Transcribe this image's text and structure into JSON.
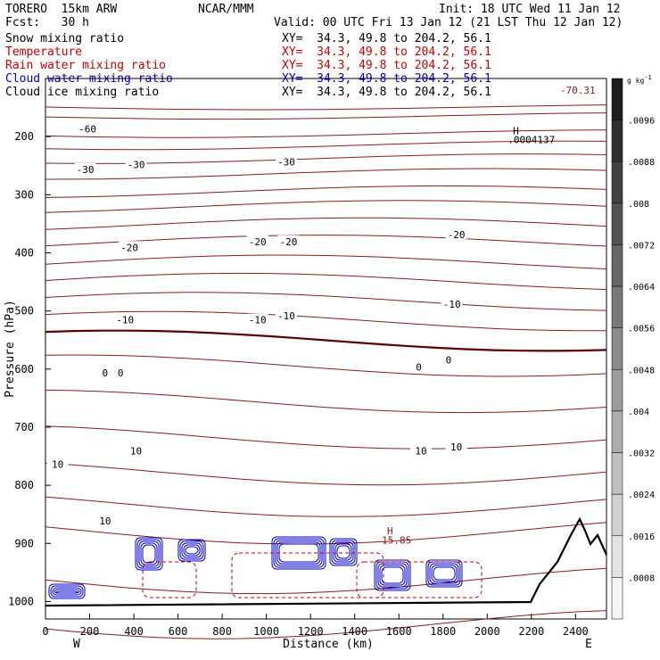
{
  "header": {
    "model": "TORERO  15km ARW",
    "center": "NCAR/MMM",
    "init": "Init: 18 UTC Wed 11 Jan 12",
    "fcst": "Fcst:   30 h",
    "valid": "Valid: 00 UTC Fri 13 Jan 12 (21 LST Thu 12 Jan 12)"
  },
  "fields": [
    {
      "name": "Snow mixing ratio",
      "xy": "XY=  34.3, 49.8 to 204.2, 56.1",
      "color": "#000000"
    },
    {
      "name": "Temperature",
      "xy": "XY=  34.3, 49.8 to 204.2, 56.1",
      "color": "#cc0000"
    },
    {
      "name": "Rain water mixing ratio",
      "xy": "XY=  34.3, 49.8 to 204.2, 56.1",
      "color": "#cc0000"
    },
    {
      "name": "Cloud water mixing ratio",
      "xy": "XY=  34.3, 49.8 to 204.2, 56.1",
      "color": "#0000cc"
    },
    {
      "name": "Cloud ice mixing ratio",
      "xy": "XY=  34.3, 49.8 to 204.2, 56.1",
      "color": "#000000"
    }
  ],
  "chart_data": {
    "type": "contour",
    "xlabel": "Distance (km)",
    "ylabel": "Pressure (hPa)",
    "x_ticks": [
      0,
      200,
      400,
      600,
      800,
      1000,
      1200,
      1400,
      1600,
      1800,
      2000,
      2200,
      2400
    ],
    "y_ticks": [
      200,
      300,
      400,
      500,
      600,
      700,
      800,
      900,
      1000
    ],
    "xlim": [
      0,
      2540
    ],
    "ylim": [
      100,
      1030
    ],
    "x_end_labels": {
      "left": "W",
      "right": "E"
    },
    "colorbar": {
      "unit": "g kg",
      "unit_exp": "-1",
      "labels": [
        ".0096",
        ".0088",
        ".008",
        ".0072",
        ".0064",
        ".0056",
        ".0048",
        ".004",
        ".0032",
        ".0024",
        ".0016",
        ".0008"
      ]
    },
    "temperature_labels": [
      {
        "text": "-60",
        "x": 190,
        "p": 188
      },
      {
        "text": "-30",
        "x": 180,
        "p": 258
      },
      {
        "text": "-30",
        "x": 410,
        "p": 250
      },
      {
        "text": "-30",
        "x": 1090,
        "p": 245
      },
      {
        "text": "-20",
        "x": 380,
        "p": 392
      },
      {
        "text": "-20",
        "x": 960,
        "p": 382
      },
      {
        "text": "-20",
        "x": 1100,
        "p": 382
      },
      {
        "text": "-20",
        "x": 1860,
        "p": 370
      },
      {
        "text": "-10",
        "x": 360,
        "p": 517
      },
      {
        "text": "-10",
        "x": 960,
        "p": 517
      },
      {
        "text": "-10",
        "x": 1090,
        "p": 510
      },
      {
        "text": "-10",
        "x": 1840,
        "p": 490
      },
      {
        "text": "0",
        "x": 270,
        "p": 608
      },
      {
        "text": "0",
        "x": 340,
        "p": 608
      },
      {
        "text": "0",
        "x": 1690,
        "p": 598
      },
      {
        "text": "0",
        "x": 1825,
        "p": 586
      },
      {
        "text": "10",
        "x": 410,
        "p": 742
      },
      {
        "text": "10",
        "x": 55,
        "p": 765
      },
      {
        "text": "10",
        "x": 1700,
        "p": 742
      },
      {
        "text": "10",
        "x": 1860,
        "p": 735
      },
      {
        "text": "10",
        "x": 270,
        "p": 863
      }
    ],
    "extrema_labels": [
      {
        "text": "H",
        "x": 2130,
        "p": 190,
        "color": "#000000"
      },
      {
        "text": ".0004137",
        "x": 2200,
        "p": 205,
        "color": "#000000"
      },
      {
        "text": "-70.31",
        "x": 2410,
        "p": 120,
        "color": "#8b1a1a"
      },
      {
        "text": "H",
        "x": 1560,
        "p": 878,
        "color": "#8b1a1a"
      },
      {
        "text": "15.85",
        "x": 1590,
        "p": 894,
        "color": "#8b1a1a"
      }
    ]
  }
}
